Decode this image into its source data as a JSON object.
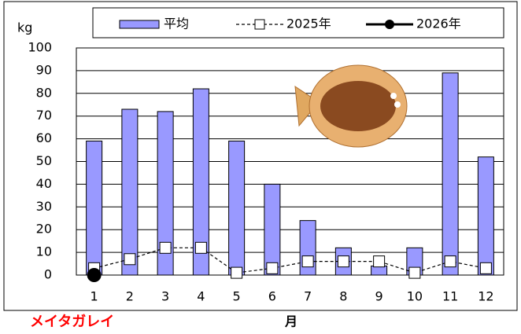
{
  "chart_data": {
    "type": "bar-line",
    "y_label": "kg",
    "x_label": "月",
    "annotation": "メイタガレイ",
    "categories": [
      "1",
      "2",
      "3",
      "4",
      "5",
      "6",
      "7",
      "8",
      "9",
      "10",
      "11",
      "12"
    ],
    "series": [
      {
        "name": "平均",
        "type": "bar",
        "color": "#9999ff",
        "values": [
          59,
          73,
          72,
          82,
          59,
          40,
          24,
          12,
          4,
          12,
          89,
          52
        ]
      },
      {
        "name": "2025年",
        "type": "line",
        "color": "#000000",
        "values": [
          3,
          7,
          12,
          12,
          1,
          3,
          6,
          6,
          6,
          1,
          6,
          3
        ]
      },
      {
        "name": "2026年",
        "type": "line",
        "color": "#000000",
        "values": [
          0,
          null,
          null,
          null,
          null,
          null,
          null,
          null,
          null,
          null,
          null,
          null
        ]
      }
    ],
    "ylim": [
      0,
      100
    ],
    "yticks": [
      0,
      10,
      20,
      30,
      40,
      50,
      60,
      70,
      80,
      90,
      100
    ],
    "grid": true
  }
}
